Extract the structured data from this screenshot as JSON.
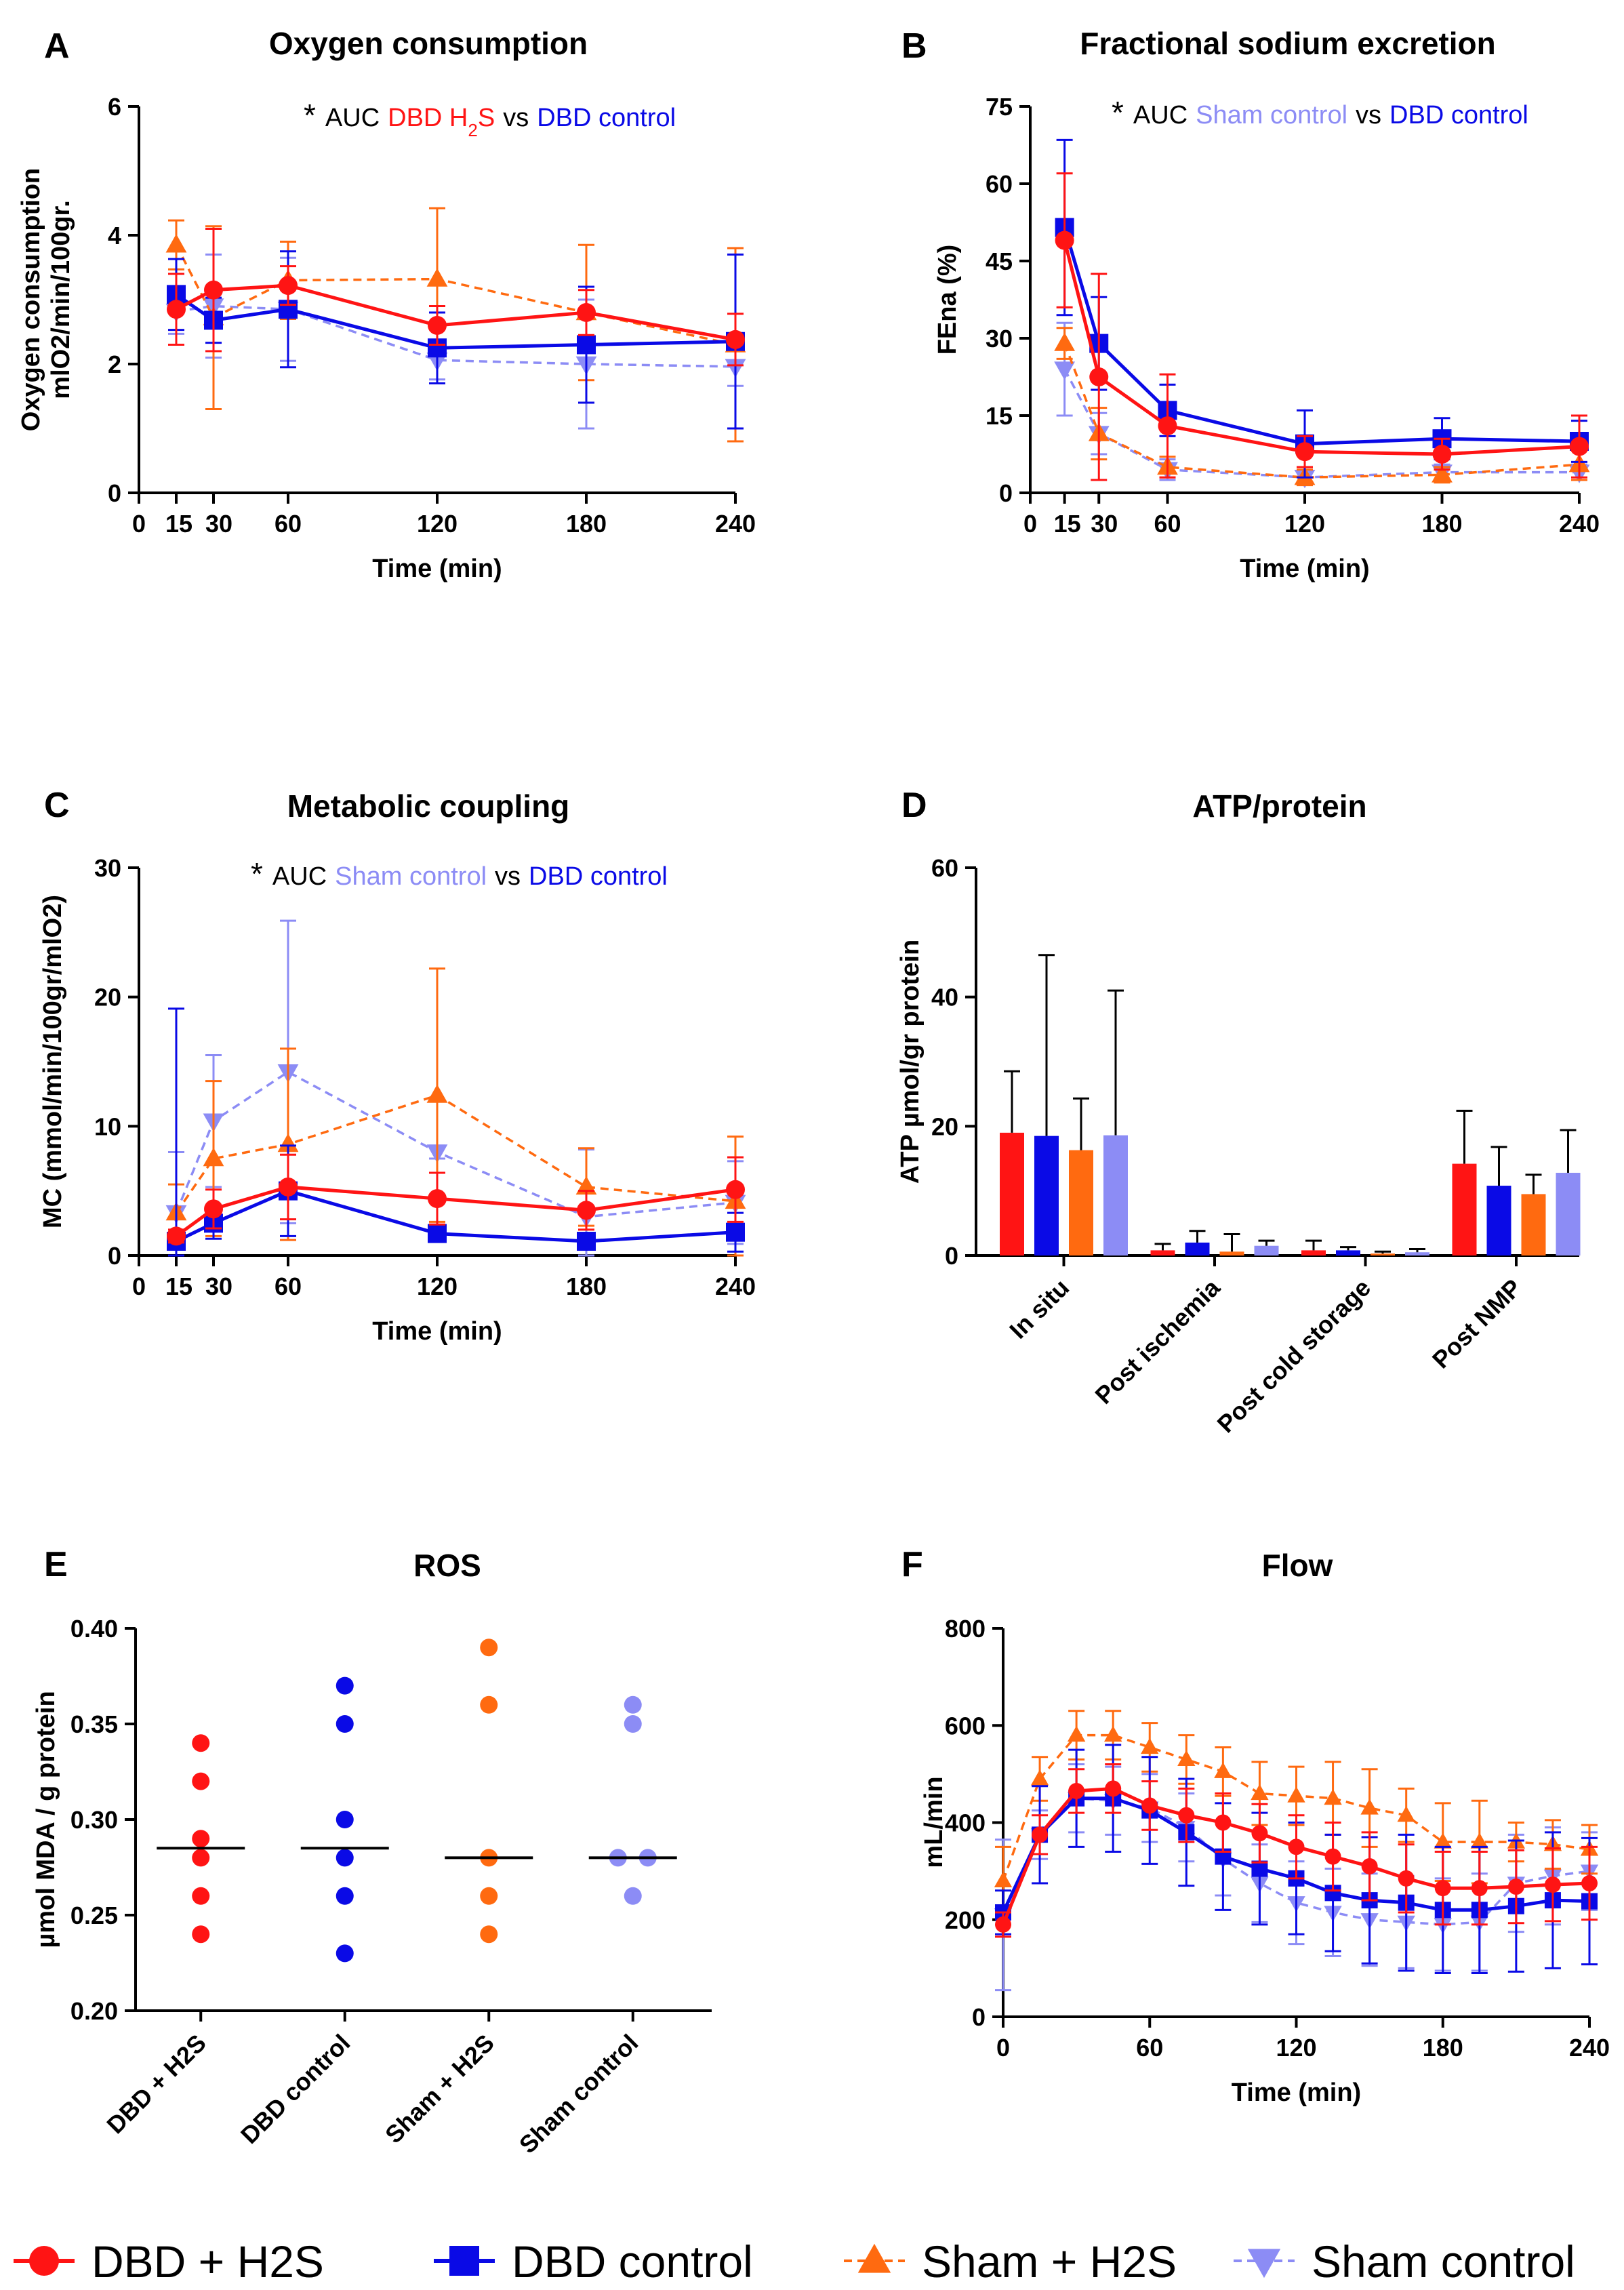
{
  "colors": {
    "dbd_h2s": "#ff1414",
    "dbd_control": "#0a0ae6",
    "sham_h2s": "#ff6a10",
    "sham_control": "#8c8cf5",
    "black": "#000000"
  },
  "legend": {
    "items": [
      {
        "label": "DBD + H2S",
        "marker": "circle",
        "color": "#ff1414",
        "dash": false
      },
      {
        "label": "DBD control",
        "marker": "square",
        "color": "#0a0ae6",
        "dash": false
      },
      {
        "label": "Sham + H2S",
        "marker": "triangle-up",
        "color": "#ff6a10",
        "dash": true
      },
      {
        "label": "Sham control",
        "marker": "triangle-down",
        "color": "#8c8cf5",
        "dash": true
      }
    ]
  },
  "chart_data": [
    {
      "panel": "A",
      "type": "line",
      "title": "Oxygen consumption",
      "xlabel": "Time (min)",
      "ylabel": [
        "Oxygen consumption",
        "mlO2/min/100gr."
      ],
      "xlim": [
        0,
        240
      ],
      "ylim": [
        0,
        6
      ],
      "xticks": [
        0,
        15,
        30,
        60,
        120,
        180,
        240
      ],
      "yticks": [
        0,
        2,
        4,
        6
      ],
      "annotation": {
        "star": "*",
        "parts": [
          {
            "text": "AUC",
            "color": "#000000"
          },
          {
            "text": "DBD H",
            "color": "#ff1414"
          },
          {
            "text": "2",
            "color": "#ff1414",
            "sub": true
          },
          {
            "text": "S",
            "color": "#ff1414"
          },
          {
            "text": "vs",
            "color": "#000000"
          },
          {
            "text": "DBD control",
            "color": "#0a0ae6"
          }
        ]
      },
      "x": [
        15,
        30,
        60,
        120,
        180,
        240
      ],
      "series": [
        {
          "name": "DBD + H2S",
          "values": [
            2.85,
            3.15,
            3.22,
            2.6,
            2.8,
            2.38
          ],
          "err": [
            0.55,
            0.95,
            0.3,
            0.3,
            0.35,
            0.4
          ]
        },
        {
          "name": "DBD control",
          "values": [
            3.08,
            2.68,
            2.85,
            2.25,
            2.3,
            2.35
          ],
          "err": [
            0.55,
            0.35,
            0.9,
            0.55,
            0.9,
            1.35
          ]
        },
        {
          "name": "Sham + H2S",
          "values": [
            3.85,
            2.72,
            3.3,
            3.32,
            2.8,
            2.3
          ],
          "err": [
            0.38,
            1.42,
            0.6,
            1.1,
            1.05,
            1.5
          ]
        },
        {
          "name": "Sham control",
          "values": [
            2.82,
            2.9,
            2.85,
            2.06,
            2.0,
            1.96
          ],
          "err": [
            0.35,
            0.8,
            0.8,
            0.3,
            1.0,
            0.3
          ]
        }
      ]
    },
    {
      "panel": "B",
      "type": "line",
      "title": "Fractional sodium excretion",
      "xlabel": "Time (min)",
      "ylabel": [
        "FEna (%)"
      ],
      "xlim": [
        0,
        240
      ],
      "ylim": [
        0,
        75
      ],
      "xticks": [
        0,
        15,
        30,
        60,
        120,
        180,
        240
      ],
      "yticks": [
        0,
        15,
        30,
        45,
        60,
        75
      ],
      "annotation": {
        "star": "*",
        "parts": [
          {
            "text": "AUC",
            "color": "#000000"
          },
          {
            "text": "Sham control",
            "color": "#8c8cf5"
          },
          {
            "text": "vs",
            "color": "#000000"
          },
          {
            "text": "DBD control",
            "color": "#0a0ae6"
          }
        ]
      },
      "x": [
        15,
        30,
        60,
        120,
        180,
        240
      ],
      "series": [
        {
          "name": "DBD + H2S",
          "values": [
            49,
            22.5,
            13,
            8,
            7.5,
            9
          ],
          "err": [
            13,
            20,
            10,
            3,
            3,
            6
          ]
        },
        {
          "name": "DBD control",
          "values": [
            51.5,
            29,
            16,
            9.5,
            10.5,
            10
          ],
          "err": [
            17,
            9,
            5,
            6.5,
            4,
            4
          ]
        },
        {
          "name": "Sham + H2S",
          "values": [
            29,
            11.5,
            5,
            3,
            3.5,
            5.5
          ],
          "err": [
            3,
            5,
            2,
            1.5,
            1.5,
            3
          ]
        },
        {
          "name": "Sham control",
          "values": [
            24,
            11.5,
            4.5,
            3,
            4,
            4
          ],
          "err": [
            9,
            4,
            2,
            1,
            1.5,
            1.5
          ]
        }
      ]
    },
    {
      "panel": "C",
      "type": "line",
      "title": "Metabolic coupling",
      "xlabel": "Time (min)",
      "ylabel": [
        "MC (mmol/min/100gr/mlO2)"
      ],
      "xlim": [
        0,
        240
      ],
      "ylim": [
        0,
        30
      ],
      "xticks": [
        0,
        15,
        30,
        60,
        120,
        180,
        240
      ],
      "yticks": [
        0,
        10,
        20,
        30
      ],
      "annotation": {
        "star": "*",
        "parts": [
          {
            "text": "AUC",
            "color": "#000000"
          },
          {
            "text": "Sham control",
            "color": "#8c8cf5"
          },
          {
            "text": "vs",
            "color": "#000000"
          },
          {
            "text": "DBD control",
            "color": "#0a0ae6"
          }
        ]
      },
      "x": [
        15,
        30,
        60,
        120,
        180,
        240
      ],
      "series": [
        {
          "name": "DBD + H2S",
          "values": [
            1.5,
            3.6,
            5.3,
            4.4,
            3.5,
            5.1
          ],
          "err": [
            0.5,
            1.5,
            2.5,
            2,
            1.5,
            2.5
          ]
        },
        {
          "name": "DBD control",
          "values": [
            1.1,
            2.5,
            5.0,
            1.7,
            1.1,
            1.8
          ],
          "err": [
            18,
            1.2,
            3.5,
            0.5,
            0.3,
            1.5
          ]
        },
        {
          "name": "Sham + H2S",
          "values": [
            3.3,
            7.5,
            8.6,
            12.4,
            5.3,
            4.2
          ],
          "err": [
            2.2,
            6,
            7.4,
            9.8,
            3,
            5
          ]
        },
        {
          "name": "Sham control",
          "values": [
            3.3,
            10.4,
            14.2,
            8.0,
            3.0,
            4.1
          ],
          "err": [
            4.7,
            5.1,
            11.7,
            0.5,
            5.2,
            3.2
          ]
        }
      ]
    },
    {
      "panel": "D",
      "type": "bar",
      "title": "ATP/protein",
      "ylabel": [
        "ATP µmol/gr protein"
      ],
      "ylim": [
        0,
        60
      ],
      "yticks": [
        0,
        20,
        40,
        60
      ],
      "categories": [
        "In situ",
        "Post ischemia",
        "Post cold storage",
        "Post NMP"
      ],
      "series": [
        {
          "name": "DBD + H2S",
          "values": [
            19,
            0.8,
            0.8,
            14.2
          ],
          "err": [
            9.5,
            1,
            1.5,
            8.2
          ]
        },
        {
          "name": "DBD control",
          "values": [
            18.5,
            2,
            0.8,
            10.8
          ],
          "err": [
            28,
            1.8,
            0.5,
            6
          ]
        },
        {
          "name": "Sham + H2S",
          "values": [
            16.3,
            0.6,
            0.3,
            9.5
          ],
          "err": [
            8,
            2.7,
            0.3,
            3
          ]
        },
        {
          "name": "Sham control",
          "values": [
            18.6,
            1.5,
            0.5,
            12.8
          ],
          "err": [
            22.4,
            0.8,
            0.5,
            6.6
          ]
        }
      ]
    },
    {
      "panel": "E",
      "type": "scatter",
      "title": "ROS",
      "ylabel": [
        "µmol MDA / g protein"
      ],
      "ylim": [
        0.2,
        0.4
      ],
      "yticks": [
        0.2,
        0.25,
        0.3,
        0.35,
        0.4
      ],
      "ytick_labels": [
        "0.20",
        "0.25",
        "0.30",
        "0.35",
        "0.40"
      ],
      "categories": [
        "DBD + H2S",
        "DBD control",
        "Sham + H2S",
        "Sham control"
      ],
      "groups": [
        {
          "name": "DBD + H2S",
          "points": [
            0.34,
            0.32,
            0.29,
            0.28,
            0.26,
            0.24
          ],
          "median": 0.285
        },
        {
          "name": "DBD control",
          "points": [
            0.37,
            0.35,
            0.3,
            0.28,
            0.26,
            0.23
          ],
          "median": 0.285
        },
        {
          "name": "Sham + H2S",
          "points": [
            0.39,
            0.36,
            0.28,
            0.26,
            0.24
          ],
          "median": 0.28
        },
        {
          "name": "Sham control",
          "points": [
            0.36,
            0.35,
            0.28,
            0.28,
            0.26
          ],
          "median": 0.28
        }
      ]
    },
    {
      "panel": "F",
      "type": "line",
      "title": "Flow",
      "xlabel": "Time (min)",
      "ylabel": [
        "mL/min"
      ],
      "xlim": [
        0,
        240
      ],
      "ylim": [
        0,
        800
      ],
      "xticks": [
        0,
        60,
        120,
        180,
        240
      ],
      "yticks": [
        0,
        200,
        400,
        600,
        800
      ],
      "x": [
        0,
        15,
        30,
        45,
        60,
        75,
        90,
        105,
        120,
        135,
        150,
        165,
        180,
        195,
        210,
        225,
        240
      ],
      "series": [
        {
          "name": "DBD + H2S",
          "values": [
            190,
            375,
            465,
            470,
            435,
            415,
            400,
            378,
            350,
            330,
            310,
            285,
            265,
            265,
            268,
            272,
            275
          ],
          "err": [
            25,
            40,
            45,
            50,
            50,
            55,
            60,
            60,
            65,
            70,
            70,
            70,
            75,
            75,
            75,
            75,
            75
          ]
        },
        {
          "name": "DBD control",
          "values": [
            215,
            375,
            450,
            450,
            425,
            380,
            330,
            305,
            285,
            255,
            240,
            235,
            220,
            220,
            228,
            240,
            238
          ],
          "err": [
            45,
            100,
            100,
            110,
            110,
            110,
            110,
            115,
            115,
            120,
            130,
            140,
            130,
            130,
            135,
            140,
            130
          ]
        },
        {
          "name": "Sham + H2S",
          "values": [
            280,
            490,
            580,
            580,
            555,
            530,
            505,
            460,
            455,
            450,
            430,
            415,
            360,
            360,
            360,
            355,
            345
          ],
          "err": [
            70,
            45,
            50,
            50,
            50,
            50,
            50,
            65,
            60,
            75,
            80,
            55,
            80,
            85,
            40,
            50,
            50
          ]
        },
        {
          "name": "Sham control",
          "values": [
            210,
            375,
            450,
            445,
            430,
            390,
            325,
            275,
            235,
            215,
            200,
            195,
            190,
            195,
            275,
            290,
            300
          ],
          "err": [
            155,
            50,
            70,
            70,
            70,
            70,
            75,
            80,
            85,
            90,
            95,
            95,
            95,
            100,
            100,
            100,
            80
          ]
        }
      ]
    }
  ]
}
